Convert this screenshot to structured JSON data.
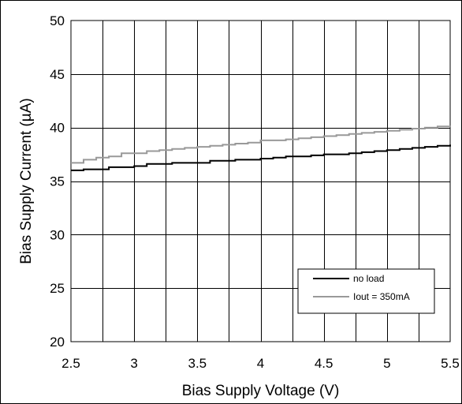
{
  "chart_data": {
    "type": "line",
    "xlabel": "Bias Supply Voltage (V)",
    "ylabel": "Bias Supply Current (µA)",
    "xlim": [
      2.5,
      5.5
    ],
    "ylim": [
      20,
      50
    ],
    "x_ticks": [
      2.5,
      3,
      3.5,
      4,
      4.5,
      5,
      5.5
    ],
    "x_tick_labels": [
      "2.5",
      "3",
      "3.5",
      "4",
      "4.5",
      "5",
      "5.5"
    ],
    "y_ticks": [
      20,
      25,
      30,
      35,
      40,
      45,
      50
    ],
    "y_tick_labels": [
      "20",
      "25",
      "30",
      "35",
      "40",
      "45",
      "50"
    ],
    "x_minor_step": 0.25,
    "grid": true,
    "legend_position": "bottom-right",
    "series": [
      {
        "name": "no load",
        "color": "#000000",
        "x": [
          2.5,
          2.6,
          2.7,
          2.8,
          2.9,
          3.0,
          3.1,
          3.2,
          3.3,
          3.4,
          3.5,
          3.6,
          3.7,
          3.8,
          3.9,
          4.0,
          4.1,
          4.2,
          4.3,
          4.4,
          4.5,
          4.6,
          4.7,
          4.8,
          4.9,
          5.0,
          5.1,
          5.2,
          5.3,
          5.4,
          5.5
        ],
        "y": [
          36.0,
          36.1,
          36.1,
          36.3,
          36.3,
          36.4,
          36.6,
          36.6,
          36.7,
          36.7,
          36.7,
          36.9,
          36.9,
          37.0,
          37.0,
          37.1,
          37.2,
          37.3,
          37.3,
          37.4,
          37.5,
          37.5,
          37.6,
          37.7,
          37.8,
          37.9,
          38.0,
          38.1,
          38.2,
          38.3,
          38.4
        ]
      },
      {
        "name": "Iout = 350mA",
        "color": "#999999",
        "x": [
          2.5,
          2.6,
          2.7,
          2.8,
          2.9,
          3.0,
          3.1,
          3.2,
          3.3,
          3.4,
          3.5,
          3.6,
          3.7,
          3.8,
          3.9,
          4.0,
          4.1,
          4.2,
          4.3,
          4.4,
          4.5,
          4.6,
          4.7,
          4.8,
          4.9,
          5.0,
          5.1,
          5.2,
          5.3,
          5.4,
          5.5
        ],
        "y": [
          36.7,
          37.0,
          37.2,
          37.3,
          37.6,
          37.6,
          37.8,
          37.9,
          38.0,
          38.1,
          38.2,
          38.3,
          38.4,
          38.5,
          38.6,
          38.8,
          38.8,
          38.9,
          39.0,
          39.1,
          39.2,
          39.3,
          39.4,
          39.5,
          39.6,
          39.7,
          39.8,
          39.9,
          40.0,
          40.1,
          40.2
        ]
      }
    ]
  }
}
